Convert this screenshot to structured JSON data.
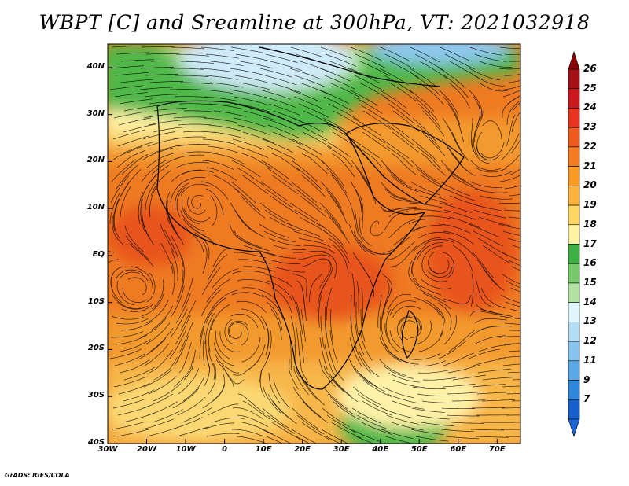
{
  "title": "WBPT [C] and Sreamline at 300hPa, VT: 2021032918",
  "credit": "GrADS: IGES/COLA",
  "map": {
    "lon_range": [
      -30,
      76
    ],
    "lat_range": [
      -40,
      45
    ],
    "x_ticks": [
      {
        "lon": -30,
        "label": "30W"
      },
      {
        "lon": -20,
        "label": "20W"
      },
      {
        "lon": -10,
        "label": "10W"
      },
      {
        "lon": 0,
        "label": "0"
      },
      {
        "lon": 10,
        "label": "10E"
      },
      {
        "lon": 20,
        "label": "20E"
      },
      {
        "lon": 30,
        "label": "30E"
      },
      {
        "lon": 40,
        "label": "40E"
      },
      {
        "lon": 50,
        "label": "50E"
      },
      {
        "lon": 60,
        "label": "60E"
      },
      {
        "lon": 70,
        "label": "70E"
      }
    ],
    "y_ticks": [
      {
        "lat": 40,
        "label": "40N"
      },
      {
        "lat": 30,
        "label": "30N"
      },
      {
        "lat": 20,
        "label": "20N"
      },
      {
        "lat": 10,
        "label": "10N"
      },
      {
        "lat": 0,
        "label": "EQ"
      },
      {
        "lat": -10,
        "label": "10S"
      },
      {
        "lat": -20,
        "label": "20S"
      },
      {
        "lat": -30,
        "label": "30S"
      },
      {
        "lat": -40,
        "label": "40S"
      }
    ],
    "field_colors": {
      "cold_blue": "#8ec8ee",
      "pale_blue": "#cfeaf8",
      "green": "#4fb84a",
      "light_green": "#a6dc8a",
      "pale_yellow": "#fff2a8",
      "yellow": "#fbd873",
      "light_orange": "#f7b64a",
      "orange": "#f39a2d",
      "dark_orange": "#ee7a22",
      "red_orange": "#e8551e"
    }
  },
  "colorbar": {
    "labels": [
      "26",
      "25",
      "24",
      "23",
      "22",
      "21",
      "20",
      "19",
      "18",
      "17",
      "16",
      "15",
      "14",
      "13",
      "12",
      "11",
      "9",
      "7"
    ],
    "colors": [
      "#a50f15",
      "#cb181d",
      "#e8331e",
      "#ef5a1e",
      "#f47b20",
      "#f99a25",
      "#fbb33b",
      "#fdd663",
      "#fff2a3",
      "#3cb043",
      "#77c96a",
      "#b2e2a2",
      "#e0f5fc",
      "#b3dcf5",
      "#86c3ee",
      "#5aa8e6",
      "#2f86db",
      "#155fcf"
    ],
    "top_cap_color": "#8b0000",
    "bottom_cap_color": "#1c63d6"
  }
}
